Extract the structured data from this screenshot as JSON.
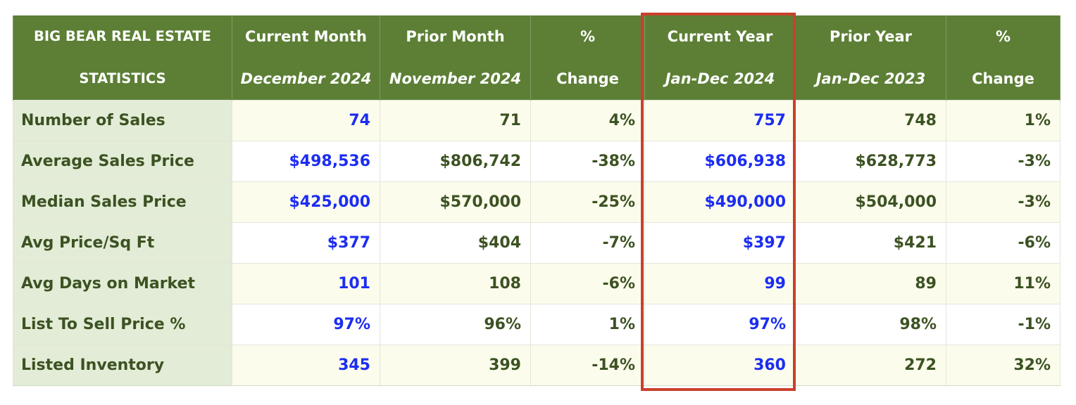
{
  "table": {
    "columns": [
      {
        "line1": "BIG BEAR REAL ESTATE",
        "line2": "STATISTICS"
      },
      {
        "line1": "Current Month",
        "line2": "December 2024"
      },
      {
        "line1": "Prior Month",
        "line2": "November 2024"
      },
      {
        "line1": "%",
        "line2": "Change"
      },
      {
        "line1": "Current Year",
        "line2": "Jan-Dec 2024"
      },
      {
        "line1": "Prior Year",
        "line2": "Jan-Dec 2023"
      },
      {
        "line1": "%",
        "line2": "Change"
      }
    ],
    "rows": [
      {
        "label": "Number of Sales",
        "values": [
          "74",
          "71",
          "4%",
          "757",
          "748",
          "1%"
        ]
      },
      {
        "label": "Average Sales Price",
        "values": [
          "$498,536",
          "$806,742",
          "-38%",
          "$606,938",
          "$628,773",
          "-3%"
        ]
      },
      {
        "label": "Median Sales Price",
        "values": [
          "$425,000",
          "$570,000",
          "-25%",
          "$490,000",
          "$504,000",
          "-3%"
        ]
      },
      {
        "label": "Avg Price/Sq Ft",
        "values": [
          "$377",
          "$404",
          "-7%",
          "$397",
          "$421",
          "-6%"
        ]
      },
      {
        "label": "Avg Days on Market",
        "values": [
          "101",
          "108",
          "-6%",
          "99",
          "89",
          "11%"
        ]
      },
      {
        "label": "List To Sell Price %",
        "values": [
          "97%",
          "96%",
          "1%",
          "97%",
          "98%",
          "-1%"
        ]
      },
      {
        "label": "Listed Inventory",
        "values": [
          "345",
          "399",
          "-14%",
          "360",
          "272",
          "32%"
        ]
      }
    ]
  },
  "colors": {
    "header_bg": "#5c7f35",
    "label_bg": "#e2ecd6",
    "text_green": "#3c5222",
    "text_blue": "#1c2df2",
    "highlight_border": "#c9402c"
  }
}
